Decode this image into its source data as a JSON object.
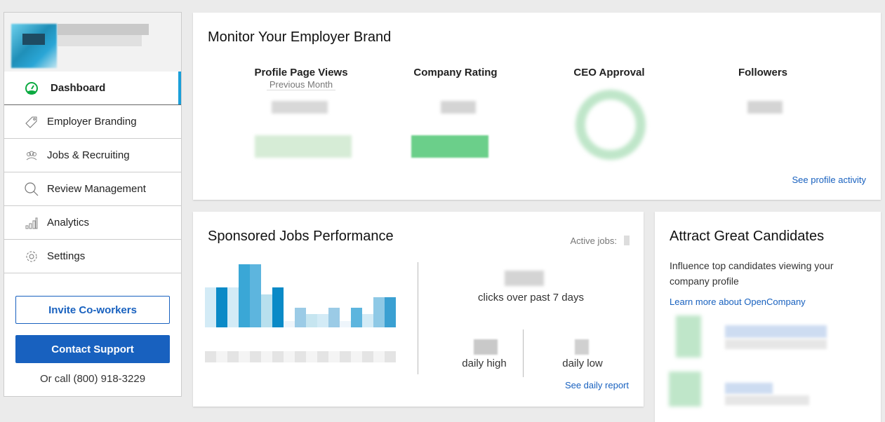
{
  "sidebar": {
    "items": [
      {
        "label": "Dashboard",
        "icon": "gauge-icon"
      },
      {
        "label": "Employer Branding",
        "icon": "tag-icon"
      },
      {
        "label": "Jobs & Recruiting",
        "icon": "people-icon"
      },
      {
        "label": "Review Management",
        "icon": "search-icon"
      },
      {
        "label": "Analytics",
        "icon": "bar-chart-icon"
      },
      {
        "label": "Settings",
        "icon": "gear-icon"
      }
    ],
    "invite_label": "Invite Co-workers",
    "support_label": "Contact Support",
    "phone_text": "Or call (800) 918-3229"
  },
  "brand": {
    "title": "Monitor Your Employer Brand",
    "stats": [
      {
        "label": "Profile Page Views",
        "sub": "Previous Month"
      },
      {
        "label": "Company Rating"
      },
      {
        "label": "CEO Approval"
      },
      {
        "label": "Followers"
      }
    ],
    "link": "See profile activity"
  },
  "jobs": {
    "title": "Sponsored Jobs Performance",
    "active_jobs_label": "Active jobs:",
    "clicks_label": "clicks over past 7 days",
    "daily_high_label": "daily high",
    "daily_low_label": "daily low",
    "link": "See daily report"
  },
  "attract": {
    "title": "Attract Great Candidates",
    "text": "Influence top candidates viewing your company profile",
    "link": "Learn more about OpenCompany"
  },
  "colors": {
    "accent": "#1861bf",
    "active": "#1a9fd9",
    "green": "#0caa41"
  }
}
